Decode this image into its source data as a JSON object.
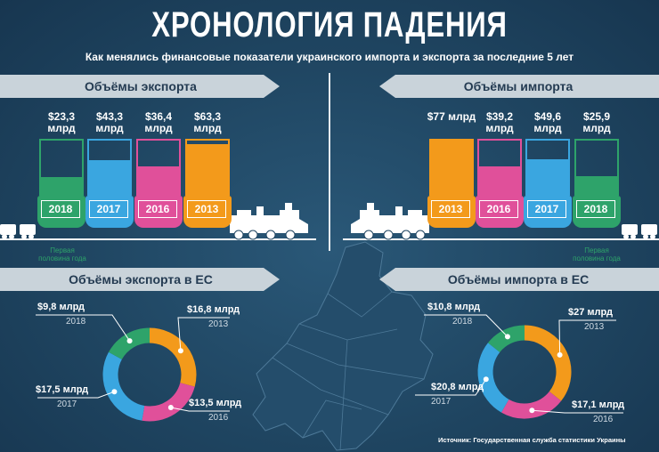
{
  "header": {
    "title": "ХРОНОЛОГИЯ ПАДЕНИЯ",
    "subtitle": "Как менялись финансовые показатели украинского импорта и экспорта за последние 5 лет"
  },
  "export_banner": "Объёмы экспорта",
  "import_banner": "Объёмы импорта",
  "export_eu_banner": "Объёмы экспорта в ЕС",
  "import_eu_banner": "Объёмы импорта в ЕС",
  "note": {
    "half_year_left": "Первая половина года",
    "half_year_right": "Первая половина года"
  },
  "source": "Источник: Государственная служба статистики Украины",
  "colors": {
    "green": "#2ea36a",
    "blue": "#3aa6e0",
    "pink": "#e0509a",
    "orange": "#f39a1b",
    "background": "#1f4561",
    "banner": "#c9d3da"
  },
  "chart_data": [
    {
      "type": "bar",
      "title": "Объёмы экспорта",
      "categories": [
        "2018",
        "2017",
        "2016",
        "2013"
      ],
      "value_labels": [
        "$23,3 млрд",
        "$43,3 млрд",
        "$36,4 млрд",
        "$63,3 млрд"
      ],
      "values": [
        23.3,
        43.3,
        36.4,
        63.3
      ],
      "colors": [
        "#2ea36a",
        "#3aa6e0",
        "#e0509a",
        "#f39a1b"
      ],
      "ylim": [
        0,
        70
      ]
    },
    {
      "type": "bar",
      "title": "Объёмы импорта",
      "categories": [
        "2013",
        "2016",
        "2017",
        "2018"
      ],
      "value_labels": [
        "$77 млрд",
        "$39,2 млрд",
        "$49,6 млрд",
        "$25,9 млрд"
      ],
      "values": [
        77,
        39.2,
        49.6,
        25.9
      ],
      "colors": [
        "#f39a1b",
        "#e0509a",
        "#3aa6e0",
        "#2ea36a"
      ],
      "ylim": [
        0,
        77
      ]
    },
    {
      "type": "pie",
      "title": "Объёмы экспорта в ЕС",
      "slices": [
        {
          "label": "$16,8 млрд",
          "year": "2013",
          "value": 16.8,
          "color": "#f39a1b"
        },
        {
          "label": "$13,5 млрд",
          "year": "2016",
          "value": 13.5,
          "color": "#e0509a"
        },
        {
          "label": "$17,5 млрд",
          "year": "2017",
          "value": 17.5,
          "color": "#3aa6e0"
        },
        {
          "label": "$9,8 млрд",
          "year": "2018",
          "value": 9.8,
          "color": "#2ea36a"
        }
      ]
    },
    {
      "type": "pie",
      "title": "Объёмы импорта в ЕС",
      "slices": [
        {
          "label": "$27 млрд",
          "year": "2013",
          "value": 27,
          "color": "#f39a1b"
        },
        {
          "label": "$17,1 млрд",
          "year": "2016",
          "value": 17.1,
          "color": "#e0509a"
        },
        {
          "label": "$20,8 млрд",
          "year": "2017",
          "value": 20.8,
          "color": "#3aa6e0"
        },
        {
          "label": "$10,8 млрд",
          "year": "2018",
          "value": 10.8,
          "color": "#2ea36a"
        }
      ]
    }
  ]
}
